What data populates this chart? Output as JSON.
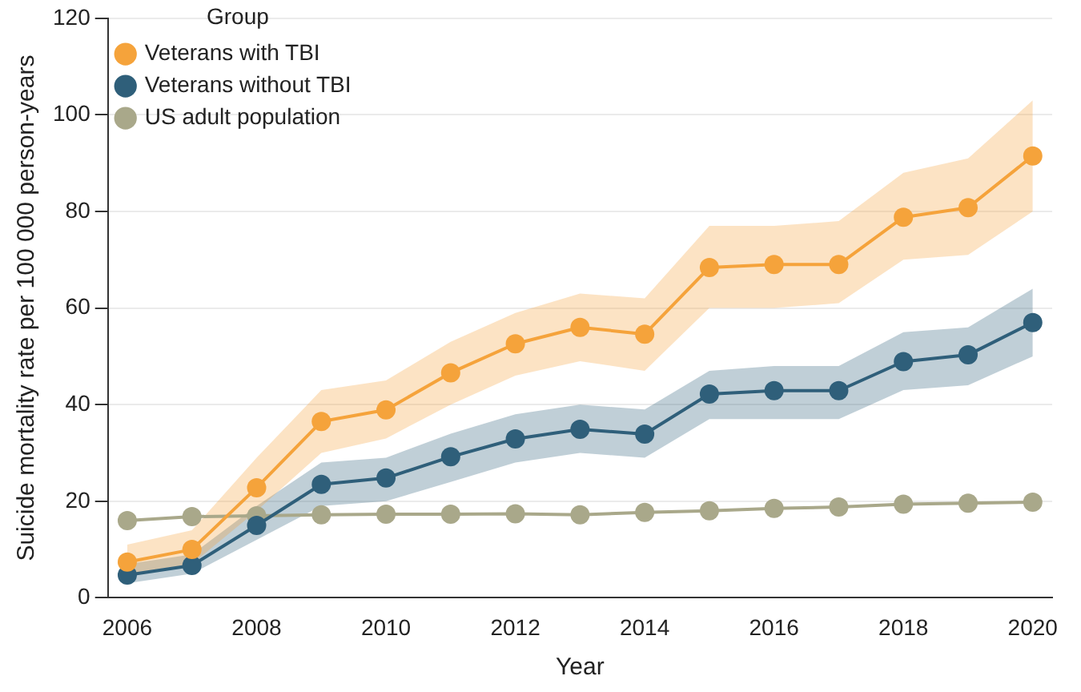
{
  "chart_data": {
    "type": "line",
    "xlabel": "Year",
    "ylabel": "Suicide mortality rate per 100 000 person-years",
    "legend_title": "Group",
    "legend": "top left",
    "marker": "circle",
    "grid": "y",
    "x": [
      2006,
      2007,
      2008,
      2009,
      2010,
      2011,
      2012,
      2013,
      2014,
      2015,
      2016,
      2017,
      2018,
      2019,
      2020
    ],
    "xlim": [
      2005.7,
      2020.3
    ],
    "xticks": [
      2006,
      2008,
      2010,
      2012,
      2014,
      2016,
      2018,
      2020
    ],
    "ylim": [
      0,
      120
    ],
    "yticks": [
      0,
      20,
      40,
      60,
      80,
      100,
      120
    ],
    "series": [
      {
        "name": "Veterans with TBI",
        "color": "#f5a33b",
        "values": [
          7.4,
          10,
          22.8,
          36.5,
          38.9,
          46.6,
          52.6,
          56,
          54.6,
          68.4,
          69,
          69,
          78.8,
          80.8,
          91.5
        ],
        "lower": [
          5,
          7,
          18,
          30,
          33,
          40,
          46,
          49,
          47,
          60,
          60,
          61,
          70,
          71,
          80
        ],
        "upper": [
          11,
          14,
          29,
          43,
          45,
          53,
          59,
          63,
          62,
          77,
          77,
          78,
          88,
          91,
          103
        ]
      },
      {
        "name": "Veterans without TBI",
        "color": "#2f5f7a",
        "values": [
          4.7,
          6.7,
          15,
          23.5,
          24.8,
          29.2,
          32.9,
          34.9,
          33.9,
          42.2,
          42.9,
          42.9,
          48.9,
          50.3,
          57
        ],
        "lower": [
          3,
          5,
          12,
          19,
          20,
          24,
          28,
          30,
          29,
          37,
          37,
          37,
          43,
          44,
          50
        ],
        "upper": [
          7,
          9,
          19,
          28,
          29,
          34,
          38,
          40,
          39,
          47,
          48,
          48,
          55,
          56,
          64
        ]
      },
      {
        "name": "US adult population",
        "color": "#a9a88a",
        "values": [
          16,
          16.8,
          17,
          17.2,
          17.3,
          17.3,
          17.4,
          17.2,
          17.7,
          18,
          18.5,
          18.8,
          19.4,
          19.6,
          19.8
        ]
      }
    ]
  }
}
